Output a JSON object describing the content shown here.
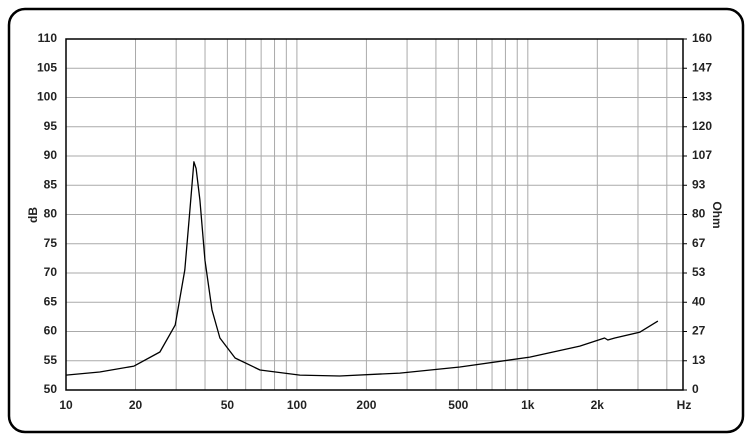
{
  "chart_data": {
    "type": "line",
    "x_label": "Hz",
    "y_label": "dB",
    "y2_label": "Ohm",
    "x_log": true,
    "grid": true,
    "xlim": [
      10,
      4700
    ],
    "xticks": [
      10,
      20,
      50,
      100,
      200,
      500,
      {
        "value": 1000,
        "label": "1k"
      },
      {
        "value": 2000,
        "label": "2k"
      }
    ],
    "x_minor_grid": [
      30,
      40,
      60,
      70,
      80,
      90,
      300,
      400,
      600,
      700,
      800,
      900,
      3000,
      4000
    ],
    "ylim": [
      50,
      110
    ],
    "yticks": [
      50,
      55,
      60,
      65,
      70,
      75,
      80,
      85,
      90,
      95,
      100,
      105,
      110
    ],
    "y2lim": [
      0,
      160
    ],
    "y2ticks": [
      0,
      {
        "value": 13.33,
        "label": "13"
      },
      {
        "value": 26.67,
        "label": "27"
      },
      40,
      {
        "value": 53.33,
        "label": "53"
      },
      {
        "value": 66.67,
        "label": "67"
      },
      80,
      {
        "value": 93.33,
        "label": "93"
      },
      {
        "value": 106.67,
        "label": "107"
      },
      120,
      {
        "value": 133.33,
        "label": "133"
      },
      {
        "value": 146.67,
        "label": "147"
      },
      160
    ],
    "x": [
      10,
      14,
      19.7,
      25.5,
      29.7,
      32.7,
      34.4,
      35.8,
      36.6,
      38,
      40,
      42.9,
      46.4,
      54,
      69.2,
      103,
      153,
      279,
      508,
      1020,
      1680,
      2150,
      2220,
      2380,
      3060,
      3660
    ],
    "series": [
      {
        "color": "#000000",
        "axis": "y2",
        "values": [
          6.8,
          8.2,
          10.9,
          17.3,
          29.6,
          54.7,
          82,
          104,
          101,
          86.6,
          59,
          36.5,
          23.7,
          14.6,
          9.1,
          6.8,
          6.4,
          7.7,
          10.5,
          15,
          20,
          23.7,
          22.8,
          23.7,
          26.4,
          31.4
        ]
      }
    ]
  }
}
